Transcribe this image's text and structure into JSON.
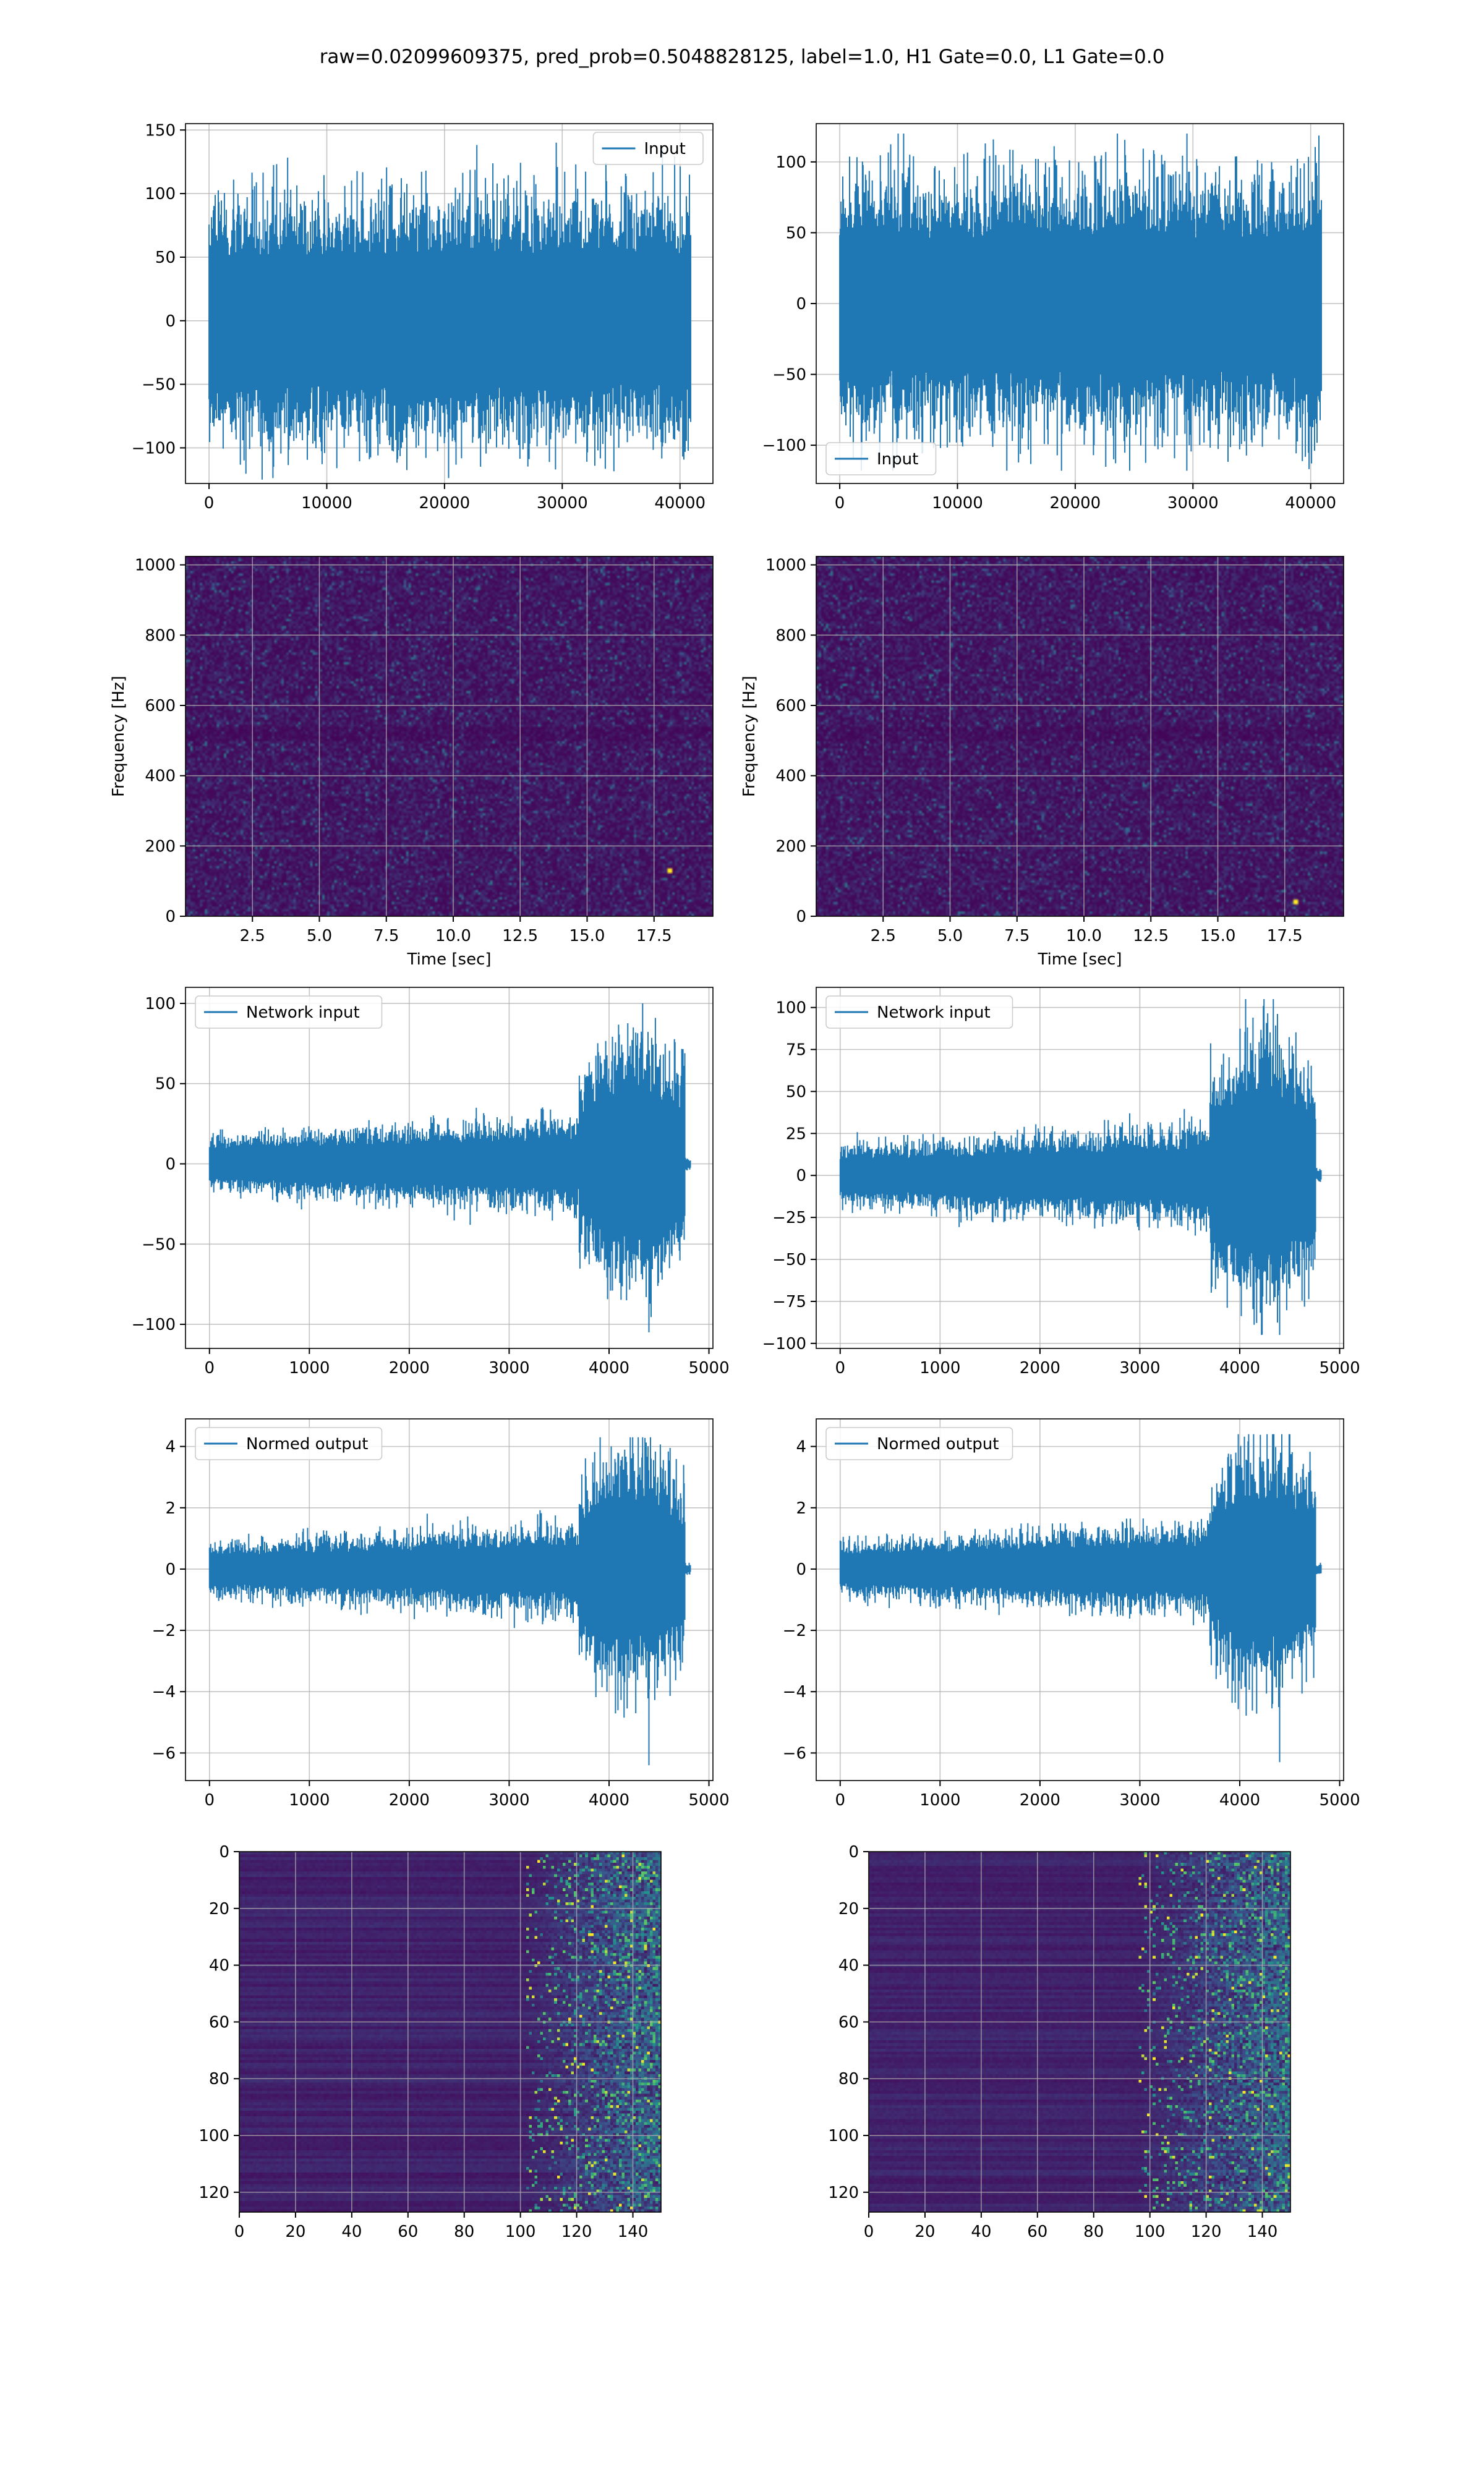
{
  "figure_title": "raw=0.02099609375, pred_prob=0.5048828125, label=1.0, H1 Gate=0.0, L1 Gate=0.0",
  "colors": {
    "series": "#1f77b4",
    "grid": "#b0b0b0",
    "viridis_low": "#440154",
    "viridis_mid": "#21918c",
    "viridis_high": "#fde725"
  },
  "chart_data": [
    {
      "id": "input-h1",
      "type": "line",
      "title": "",
      "legend": "Input",
      "legend_loc": "upper right",
      "xlim": [
        -2000,
        42800
      ],
      "ylim": [
        -128,
        155
      ],
      "xticks": [
        0,
        10000,
        20000,
        30000,
        40000
      ],
      "yticks": [
        -100,
        -50,
        0,
        50,
        100,
        150
      ],
      "xlabel": "",
      "ylabel": "",
      "grid": true,
      "signal": {
        "n": 40960,
        "base_amp": 45,
        "peak_max": 140,
        "peak_min": -125,
        "burst": false
      }
    },
    {
      "id": "input-l1",
      "type": "line",
      "title": "",
      "legend": "Input",
      "legend_loc": "lower left",
      "xlim": [
        -2000,
        42800
      ],
      "ylim": [
        -127,
        127
      ],
      "xticks": [
        0,
        10000,
        20000,
        30000,
        40000
      ],
      "yticks": [
        -100,
        -50,
        0,
        50,
        100
      ],
      "xlabel": "",
      "ylabel": "",
      "grid": true,
      "signal": {
        "n": 40960,
        "base_amp": 42,
        "peak_max": 120,
        "peak_min": -118,
        "burst": false
      }
    },
    {
      "id": "spectrogram-h1",
      "type": "heatmap",
      "title": "",
      "colormap": "viridis",
      "xlim": [
        0.0,
        19.7
      ],
      "ylim": [
        0,
        1024
      ],
      "xticks": [
        2.5,
        5.0,
        7.5,
        10.0,
        12.5,
        15.0,
        17.5
      ],
      "yticks": [
        0,
        200,
        400,
        600,
        800,
        1000
      ],
      "xlabel": "Time [sec]",
      "ylabel": "Frequency [Hz]",
      "grid": true,
      "hotspot": [
        18.1,
        130
      ]
    },
    {
      "id": "spectrogram-l1",
      "type": "heatmap",
      "title": "",
      "colormap": "viridis",
      "xlim": [
        0.0,
        19.7
      ],
      "ylim": [
        0,
        1024
      ],
      "xticks": [
        2.5,
        5.0,
        7.5,
        10.0,
        12.5,
        15.0,
        17.5
      ],
      "yticks": [
        0,
        200,
        400,
        600,
        800,
        1000
      ],
      "xlabel": "Time [sec]",
      "ylabel": "Frequency [Hz]",
      "grid": true,
      "hotspot": [
        17.9,
        40
      ]
    },
    {
      "id": "network-input-h1",
      "type": "line",
      "title": "",
      "legend": "Network input",
      "legend_loc": "upper left",
      "xlim": [
        -240,
        5040
      ],
      "ylim": [
        -115,
        110
      ],
      "xticks": [
        0,
        1000,
        2000,
        3000,
        4000,
        5000
      ],
      "yticks": [
        -100,
        -50,
        0,
        50,
        100
      ],
      "xlabel": "",
      "ylabel": "",
      "grid": true,
      "signal": {
        "n": 4800,
        "base_amp": 8,
        "peak_max": 100,
        "peak_min": -105,
        "burst": true,
        "burst_start": 3700,
        "burst_end": 4760,
        "tail_end": 4820
      }
    },
    {
      "id": "network-input-l1",
      "type": "line",
      "title": "",
      "legend": "Network input",
      "legend_loc": "upper left",
      "xlim": [
        -240,
        5040
      ],
      "ylim": [
        -103,
        112
      ],
      "xticks": [
        0,
        1000,
        2000,
        3000,
        4000,
        5000
      ],
      "yticks": [
        -100,
        -75,
        -50,
        -25,
        0,
        25,
        50,
        75,
        100
      ],
      "xlabel": "",
      "ylabel": "",
      "grid": true,
      "signal": {
        "n": 4800,
        "base_amp": 8,
        "peak_max": 105,
        "peak_min": -95,
        "burst": true,
        "burst_start": 3700,
        "burst_end": 4760,
        "tail_end": 4820
      }
    },
    {
      "id": "normed-output-h1",
      "type": "line",
      "title": "",
      "legend": "Normed output",
      "legend_loc": "upper left",
      "xlim": [
        -240,
        5040
      ],
      "ylim": [
        -6.9,
        4.9
      ],
      "xticks": [
        0,
        1000,
        2000,
        3000,
        4000,
        5000
      ],
      "yticks": [
        -6,
        -4,
        -2,
        0,
        2,
        4
      ],
      "xlabel": "",
      "ylabel": "",
      "grid": true,
      "signal": {
        "n": 4800,
        "base_amp": 0.4,
        "peak_max": 4.3,
        "peak_min": -6.4,
        "burst": true,
        "burst_start": 3700,
        "burst_end": 4760,
        "tail_end": 4820
      }
    },
    {
      "id": "normed-output-l1",
      "type": "line",
      "title": "",
      "legend": "Normed output",
      "legend_loc": "upper left",
      "xlim": [
        -240,
        5040
      ],
      "ylim": [
        -6.9,
        4.9
      ],
      "xticks": [
        0,
        1000,
        2000,
        3000,
        4000,
        5000
      ],
      "yticks": [
        -6,
        -4,
        -2,
        0,
        2,
        4
      ],
      "xlabel": "",
      "ylabel": "",
      "grid": true,
      "signal": {
        "n": 4800,
        "base_amp": 0.4,
        "peak_max": 4.4,
        "peak_min": -6.3,
        "burst": true,
        "burst_start": 3700,
        "burst_end": 4760,
        "tail_end": 4820
      }
    },
    {
      "id": "feature-map-h1",
      "type": "heatmap",
      "title": "",
      "colormap": "viridis",
      "xlim": [
        0,
        150
      ],
      "ylim": [
        127,
        0
      ],
      "xticks": [
        0,
        20,
        40,
        60,
        80,
        100,
        120,
        140
      ],
      "yticks": [
        0,
        20,
        40,
        60,
        80,
        100,
        120
      ],
      "xlabel": "",
      "ylabel": "",
      "grid": true,
      "active_from": 102,
      "grid_size": [
        150,
        128
      ]
    },
    {
      "id": "feature-map-l1",
      "type": "heatmap",
      "title": "",
      "colormap": "viridis",
      "xlim": [
        0,
        150
      ],
      "ylim": [
        127,
        0
      ],
      "xticks": [
        0,
        20,
        40,
        60,
        80,
        100,
        120,
        140
      ],
      "yticks": [
        0,
        20,
        40,
        60,
        80,
        100,
        120
      ],
      "xlabel": "",
      "ylabel": "",
      "grid": true,
      "active_from": 96,
      "grid_size": [
        150,
        128
      ]
    }
  ]
}
